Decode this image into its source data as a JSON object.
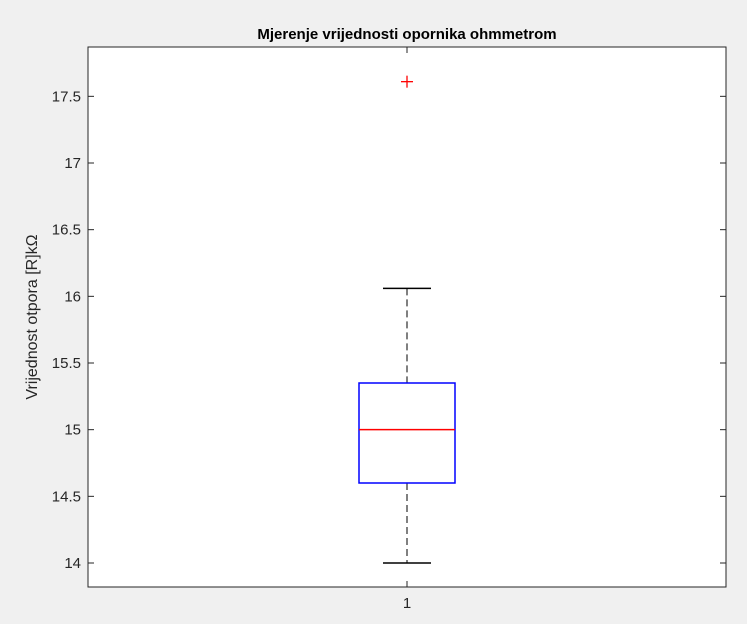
{
  "chart_data": {
    "type": "box",
    "title": "Mjerenje vrijednosti opornika ohmmetrom",
    "xlabel": "",
    "ylabel": "Vrijednost otpora [R]kΩ",
    "categories": [
      "1"
    ],
    "ylim": [
      13.82,
      17.87
    ],
    "yticks": [
      14,
      14.5,
      15,
      15.5,
      16,
      16.5,
      17,
      17.5
    ],
    "ytick_labels": [
      "14",
      "14.5",
      "15",
      "15.5",
      "16",
      "16.5",
      "17",
      "17.5"
    ],
    "grid": false,
    "boxes": [
      {
        "category": "1",
        "whisker_low": 14.0,
        "q1": 14.6,
        "median": 15.0,
        "q3": 15.35,
        "whisker_high": 16.06,
        "outliers": [
          17.61
        ]
      }
    ],
    "colors": {
      "box": "#0000ff",
      "median": "#ff0000",
      "whisker": "#000000",
      "outlier": "#ff0000",
      "axes": "#262626",
      "figure_bg": "#f0f0f0",
      "axes_bg": "#ffffff"
    }
  }
}
